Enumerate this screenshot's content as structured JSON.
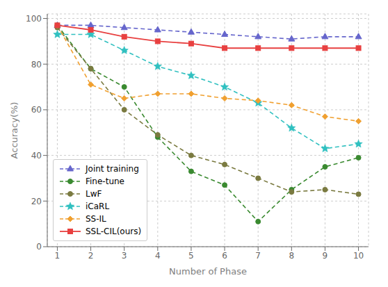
{
  "chart_data": {
    "type": "line",
    "x": [
      1,
      2,
      3,
      4,
      5,
      6,
      7,
      8,
      9,
      10
    ],
    "series": [
      {
        "name": "Joint training",
        "color": "#6666cc",
        "marker": "triangle",
        "line_style": "dashed",
        "values": [
          97,
          97,
          96,
          95,
          94,
          93,
          92,
          91,
          92,
          92
        ]
      },
      {
        "name": "Fine-tune",
        "color": "#3a8a30",
        "marker": "circle",
        "line_style": "dashed",
        "values": [
          97,
          78,
          70,
          48,
          33,
          27,
          11,
          25,
          35,
          39
        ]
      },
      {
        "name": "LwF",
        "color": "#7a7a40",
        "marker": "circle",
        "line_style": "dashed",
        "values": [
          96,
          78,
          60,
          49,
          40,
          36,
          30,
          24,
          25,
          23
        ]
      },
      {
        "name": "iCaRL",
        "color": "#30c0c0",
        "marker": "star",
        "line_style": "dashed",
        "values": [
          93,
          93,
          86,
          79,
          75,
          70,
          63,
          52,
          43,
          45
        ]
      },
      {
        "name": "SS-IL",
        "color": "#f0a030",
        "marker": "diamond",
        "line_style": "dashed",
        "values": [
          97,
          71,
          65,
          67,
          67,
          65,
          64,
          62,
          57,
          55
        ]
      },
      {
        "name": "SSL-CIL(ours)",
        "color": "#e84040",
        "marker": "square",
        "line_style": "solid",
        "values": [
          97,
          95,
          92,
          90,
          89,
          87,
          87,
          87,
          87,
          87
        ]
      }
    ],
    "xlabel": "Number of Phase",
    "ylabel": "Accuracy(%)",
    "xlim": [
      0.7,
      10.3
    ],
    "ylim": [
      0,
      102
    ],
    "xticks": [
      1,
      2,
      3,
      4,
      5,
      6,
      7,
      8,
      9,
      10
    ],
    "yticks": [
      0,
      20,
      40,
      60,
      80,
      100
    ],
    "grid": true,
    "legend": "lower left"
  }
}
